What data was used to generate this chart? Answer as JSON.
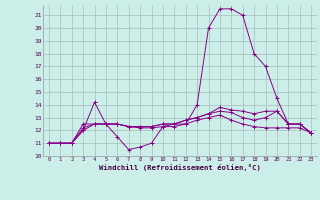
{
  "xlabel": "Windchill (Refroidissement éolien,°C)",
  "bg_color": "#cceee8",
  "grid_color": "#aabbbb",
  "line_color": "#880088",
  "xlim_min": -0.5,
  "xlim_max": 23.5,
  "ylim_min": 10,
  "ylim_max": 21.8,
  "x_ticks": [
    0,
    1,
    2,
    3,
    4,
    5,
    6,
    7,
    8,
    9,
    10,
    11,
    12,
    13,
    14,
    15,
    16,
    17,
    18,
    19,
    20,
    21,
    22,
    23
  ],
  "y_ticks": [
    10,
    11,
    12,
    13,
    14,
    15,
    16,
    17,
    18,
    19,
    20,
    21
  ],
  "series": [
    [
      11.0,
      11.0,
      11.0,
      12.0,
      14.2,
      12.5,
      11.5,
      10.5,
      10.7,
      11.0,
      12.3,
      12.5,
      12.5,
      14.0,
      20.0,
      21.5,
      21.5,
      21.0,
      18.0,
      17.0,
      14.5,
      12.5,
      12.5,
      11.8
    ],
    [
      11.0,
      11.0,
      11.0,
      12.0,
      12.5,
      12.5,
      12.5,
      12.3,
      12.3,
      12.3,
      12.5,
      12.5,
      12.8,
      13.0,
      13.3,
      13.8,
      13.6,
      13.5,
      13.3,
      13.5,
      13.5,
      12.5,
      12.5,
      11.8
    ],
    [
      11.0,
      11.0,
      11.0,
      12.2,
      12.5,
      12.5,
      12.5,
      12.3,
      12.3,
      12.3,
      12.5,
      12.5,
      12.8,
      13.0,
      13.3,
      13.5,
      13.4,
      13.0,
      12.8,
      13.0,
      13.5,
      12.5,
      12.5,
      11.8
    ],
    [
      11.0,
      11.0,
      11.0,
      12.5,
      12.5,
      12.5,
      12.5,
      12.3,
      12.2,
      12.2,
      12.3,
      12.3,
      12.5,
      12.8,
      13.0,
      13.2,
      12.8,
      12.5,
      12.3,
      12.2,
      12.2,
      12.2,
      12.2,
      11.8
    ]
  ]
}
